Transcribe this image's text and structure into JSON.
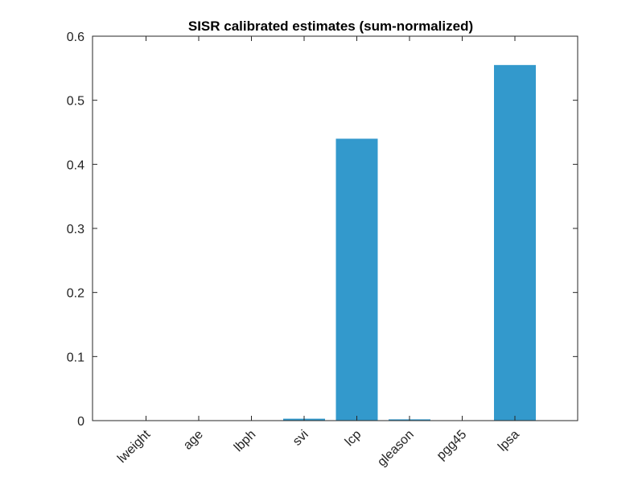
{
  "chart_data": {
    "type": "bar",
    "title": "SISR calibrated estimates (sum-normalized)",
    "xlabel": "",
    "ylabel": "",
    "categories": [
      "lweight",
      "age",
      "lbph",
      "svi",
      "lcp",
      "gleason",
      "pgg45",
      "lpsa"
    ],
    "values": [
      0,
      0,
      0,
      0.003,
      0.44,
      0.002,
      0,
      0.555
    ],
    "ylim": [
      0,
      0.6
    ],
    "yticks": [
      "0",
      "0.1",
      "0.2",
      "0.3",
      "0.4",
      "0.5",
      "0.6"
    ],
    "grid": false,
    "bar_color": "#3399cc"
  }
}
